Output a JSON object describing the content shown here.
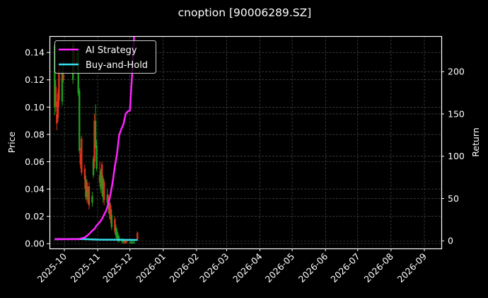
{
  "chart_data": {
    "type": "line",
    "title": "cnoption [90006289.SZ]",
    "xlabel": "",
    "ylabel": "Price",
    "ylabel_right": "Return",
    "ylim": [
      -0.0035,
      0.152
    ],
    "ylim_right": [
      -9,
      242
    ],
    "grid": true,
    "legend_position": "upper left",
    "x_tick_labels": [
      "2025-10",
      "2025-11",
      "2025-12",
      "2026-01",
      "2026-02",
      "2026-03",
      "2026-04",
      "2026-05",
      "2026-06",
      "2026-07",
      "2026-08",
      "2026-09"
    ],
    "y_ticks_left": [
      "0.00",
      "0.02",
      "0.04",
      "0.06",
      "0.08",
      "0.10",
      "0.12",
      "0.14"
    ],
    "y_ticks_right": [
      "0",
      "50",
      "100",
      "150",
      "200"
    ],
    "legend": [
      {
        "name": "AI Strategy",
        "color": "#ff22ff"
      },
      {
        "name": "Buy-and-Hold",
        "color": "#33e0ee"
      }
    ],
    "candles_up_color": "#1f9e1f",
    "candles_down_color": "#e0341a",
    "candlesticks": [
      {
        "date": "2025-09-22",
        "open": 0.1,
        "close": 0.145,
        "high": 0.146,
        "low": 0.094
      },
      {
        "date": "2025-09-23",
        "open": 0.115,
        "close": 0.1,
        "high": 0.12,
        "low": 0.096
      },
      {
        "date": "2025-09-24",
        "open": 0.095,
        "close": 0.088,
        "high": 0.104,
        "low": 0.083
      },
      {
        "date": "2025-09-25",
        "open": 0.11,
        "close": 0.092,
        "high": 0.113,
        "low": 0.089
      },
      {
        "date": "2025-09-26",
        "open": 0.128,
        "close": 0.105,
        "high": 0.131,
        "low": 0.1
      },
      {
        "date": "2025-09-29",
        "open": 0.104,
        "close": 0.126,
        "high": 0.13,
        "low": 0.101
      },
      {
        "date": "2025-09-30",
        "open": 0.124,
        "close": 0.12,
        "high": 0.134,
        "low": 0.118
      },
      {
        "date": "2025-10-09",
        "open": 0.12,
        "close": 0.145,
        "high": 0.148,
        "low": 0.117
      },
      {
        "date": "2025-10-10",
        "open": 0.14,
        "close": 0.13,
        "high": 0.146,
        "low": 0.126
      },
      {
        "date": "2025-10-13",
        "open": 0.13,
        "close": 0.14,
        "high": 0.143,
        "low": 0.128
      },
      {
        "date": "2025-10-14",
        "open": 0.11,
        "close": 0.14,
        "high": 0.142,
        "low": 0.108
      },
      {
        "date": "2025-10-15",
        "open": 0.068,
        "close": 0.112,
        "high": 0.114,
        "low": 0.066
      },
      {
        "date": "2025-10-16",
        "open": 0.066,
        "close": 0.058,
        "high": 0.07,
        "low": 0.055
      },
      {
        "date": "2025-10-17",
        "open": 0.077,
        "close": 0.052,
        "high": 0.079,
        "low": 0.05
      },
      {
        "date": "2025-10-20",
        "open": 0.055,
        "close": 0.047,
        "high": 0.058,
        "low": 0.04
      },
      {
        "date": "2025-10-21",
        "open": 0.034,
        "close": 0.047,
        "high": 0.05,
        "low": 0.032
      },
      {
        "date": "2025-10-22",
        "open": 0.045,
        "close": 0.038,
        "high": 0.047,
        "low": 0.03
      },
      {
        "date": "2025-10-23",
        "open": 0.032,
        "close": 0.04,
        "high": 0.042,
        "low": 0.029
      },
      {
        "date": "2025-10-24",
        "open": 0.042,
        "close": 0.028,
        "high": 0.045,
        "low": 0.025
      },
      {
        "date": "2025-10-27",
        "open": 0.03,
        "close": 0.035,
        "high": 0.038,
        "low": 0.027
      },
      {
        "date": "2025-10-28",
        "open": 0.05,
        "close": 0.062,
        "high": 0.064,
        "low": 0.048
      },
      {
        "date": "2025-10-29",
        "open": 0.09,
        "close": 0.06,
        "high": 0.095,
        "low": 0.055
      },
      {
        "date": "2025-10-30",
        "open": 0.072,
        "close": 0.09,
        "high": 0.102,
        "low": 0.07
      },
      {
        "date": "2025-10-31",
        "open": 0.055,
        "close": 0.072,
        "high": 0.076,
        "low": 0.053
      },
      {
        "date": "2025-11-03",
        "open": 0.05,
        "close": 0.045,
        "high": 0.06,
        "low": 0.042
      },
      {
        "date": "2025-11-04",
        "open": 0.04,
        "close": 0.053,
        "high": 0.055,
        "low": 0.037
      },
      {
        "date": "2025-11-05",
        "open": 0.058,
        "close": 0.04,
        "high": 0.06,
        "low": 0.035
      },
      {
        "date": "2025-11-06",
        "open": 0.034,
        "close": 0.048,
        "high": 0.05,
        "low": 0.03
      },
      {
        "date": "2025-11-07",
        "open": 0.045,
        "close": 0.032,
        "high": 0.047,
        "low": 0.028
      },
      {
        "date": "2025-11-10",
        "open": 0.03,
        "close": 0.036,
        "high": 0.04,
        "low": 0.027
      },
      {
        "date": "2025-11-11",
        "open": 0.034,
        "close": 0.026,
        "high": 0.036,
        "low": 0.022
      },
      {
        "date": "2025-11-12",
        "open": 0.022,
        "close": 0.03,
        "high": 0.032,
        "low": 0.018
      },
      {
        "date": "2025-11-13",
        "open": 0.028,
        "close": 0.018,
        "high": 0.03,
        "low": 0.015
      },
      {
        "date": "2025-11-14",
        "open": 0.012,
        "close": 0.021,
        "high": 0.025,
        "low": 0.01
      },
      {
        "date": "2025-11-17",
        "open": 0.018,
        "close": 0.009,
        "high": 0.02,
        "low": 0.007
      },
      {
        "date": "2025-11-18",
        "open": 0.006,
        "close": 0.012,
        "high": 0.014,
        "low": 0.004
      },
      {
        "date": "2025-11-19",
        "open": 0.004,
        "close": 0.009,
        "high": 0.011,
        "low": 0.002
      },
      {
        "date": "2025-11-20",
        "open": 0.003,
        "close": 0.006,
        "high": 0.008,
        "low": 0.001
      },
      {
        "date": "2025-11-21",
        "open": 0.002,
        "close": 0.004,
        "high": 0.006,
        "low": 0.001
      },
      {
        "date": "2025-11-24",
        "open": 0.001,
        "close": 0.003,
        "high": 0.004,
        "low": 0.0
      },
      {
        "date": "2025-11-25",
        "open": 0.001,
        "close": 0.002,
        "high": 0.003,
        "low": 0.0
      },
      {
        "date": "2025-11-26",
        "open": 0.002,
        "close": 0.001,
        "high": 0.003,
        "low": 0.0
      },
      {
        "date": "2025-11-27",
        "open": 0.001,
        "close": 0.002,
        "high": 0.003,
        "low": 0.0
      },
      {
        "date": "2025-11-28",
        "open": 0.002,
        "close": 0.001,
        "high": 0.002,
        "low": 0.0
      },
      {
        "date": "2025-12-01",
        "open": 0.001,
        "close": 0.001,
        "high": 0.002,
        "low": 0.0
      },
      {
        "date": "2025-12-02",
        "open": 0.001,
        "close": 0.001,
        "high": 0.002,
        "low": 0.0
      },
      {
        "date": "2025-12-03",
        "open": 0.001,
        "close": 0.001,
        "high": 0.002,
        "low": 0.0
      },
      {
        "date": "2025-12-04",
        "open": 0.001,
        "close": 0.001,
        "high": 0.002,
        "low": 0.0
      },
      {
        "date": "2025-12-05",
        "open": 0.001,
        "close": 0.001,
        "high": 0.002,
        "low": 0.0
      },
      {
        "date": "2025-12-08",
        "open": 0.008,
        "close": 0.003,
        "high": 0.009,
        "low": 0.002
      }
    ],
    "series": [
      {
        "name": "AI Strategy",
        "axis": "right",
        "color": "#ff22ff",
        "points": [
          [
            "2025-09-22",
            2
          ],
          [
            "2025-10-01",
            2
          ],
          [
            "2025-10-10",
            2
          ],
          [
            "2025-10-14",
            2
          ],
          [
            "2025-10-17",
            3
          ],
          [
            "2025-10-20",
            4
          ],
          [
            "2025-10-22",
            6
          ],
          [
            "2025-10-24",
            8
          ],
          [
            "2025-10-27",
            12
          ],
          [
            "2025-10-29",
            14
          ],
          [
            "2025-10-31",
            18
          ],
          [
            "2025-11-03",
            22
          ],
          [
            "2025-11-05",
            26
          ],
          [
            "2025-11-07",
            31
          ],
          [
            "2025-11-09",
            36
          ],
          [
            "2025-11-11",
            44
          ],
          [
            "2025-11-13",
            55
          ],
          [
            "2025-11-15",
            70
          ],
          [
            "2025-11-17",
            88
          ],
          [
            "2025-11-19",
            103
          ],
          [
            "2025-11-21",
            125
          ],
          [
            "2025-11-23",
            132
          ],
          [
            "2025-11-25",
            138
          ],
          [
            "2025-11-27",
            150
          ],
          [
            "2025-11-29",
            153
          ],
          [
            "2025-12-01",
            154
          ],
          [
            "2025-12-02",
            175
          ],
          [
            "2025-12-03",
            195
          ],
          [
            "2025-12-04",
            220
          ],
          [
            "2025-12-05",
            245
          ]
        ]
      },
      {
        "name": "Buy-and-Hold",
        "axis": "right",
        "color": "#33e0ee",
        "points": [
          [
            "2025-09-22",
            2.0
          ],
          [
            "2025-10-15",
            2.2
          ],
          [
            "2025-11-01",
            1.5
          ],
          [
            "2025-11-15",
            1.4
          ],
          [
            "2025-12-08",
            1.0
          ]
        ]
      }
    ]
  }
}
